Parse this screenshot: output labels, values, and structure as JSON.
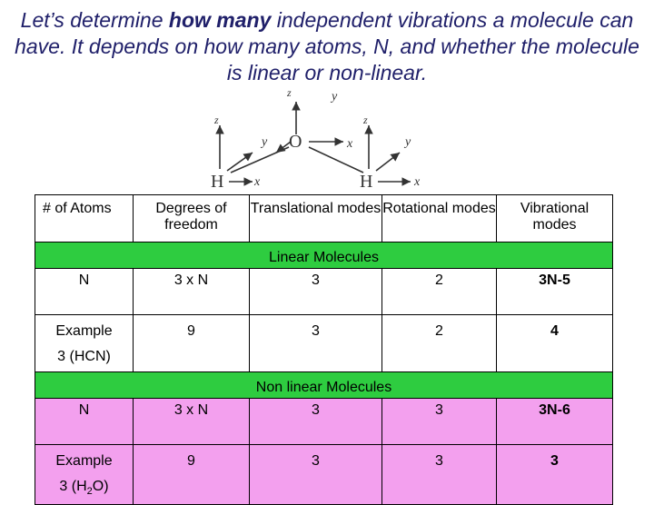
{
  "title": {
    "part1": "Let’s determine ",
    "emphasis": "how many",
    "part2": " independent vibrations a molecule can have.  It depends on how many atoms, N, and whether the molecule is  linear or non-linear."
  },
  "diagram": {
    "atom_o": "O",
    "atom_h": "H",
    "axis_x": "x",
    "axis_y": "y",
    "axis_z": "z"
  },
  "table": {
    "headers": [
      "# of Atoms",
      "Degrees of freedom",
      "Translational modes",
      "Rotational modes",
      "Vibrational modes"
    ],
    "linear_label": "Linear Molecules",
    "linear_rows": [
      [
        "N",
        "3 x N",
        "3",
        "2",
        "3N-5"
      ],
      [
        "Example",
        "9",
        "3",
        "2",
        "4"
      ]
    ],
    "linear_example": "3 (HCN)",
    "nonlinear_label": "Non linear Molecules",
    "nonlinear_rows": [
      [
        "N",
        "3 x N",
        "3",
        "3",
        "3N-6"
      ],
      [
        "Example",
        "9",
        "3",
        "3",
        "3"
      ]
    ],
    "nonlinear_example_pre": "3 (H",
    "nonlinear_example_sub": "2",
    "nonlinear_example_post": "O)"
  },
  "colors": {
    "title": "#20206a",
    "section": "#2ecc40",
    "nonlinear_rows": "#f3a0ee"
  }
}
